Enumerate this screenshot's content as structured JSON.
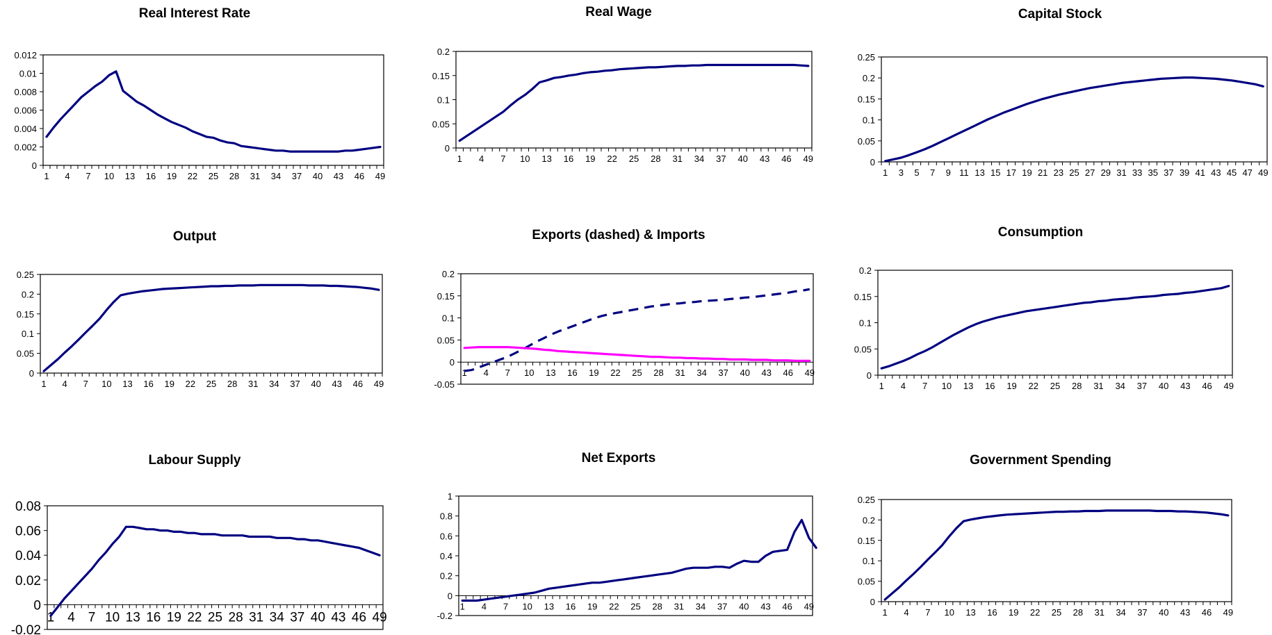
{
  "figure": {
    "background": "#ffffff",
    "line_color": "#000080",
    "imports_color": "#ff00ff"
  },
  "chart_data": [
    {
      "id": "real-interest-rate",
      "type": "line",
      "title": "Real Interest Rate",
      "ylim": [
        0,
        0.012
      ],
      "yticks": [
        "0",
        "0.002",
        "0.004",
        "0.006",
        "0.008",
        "0.01",
        "0.012"
      ],
      "x_tick_start": 1,
      "x_tick_step": 3,
      "x_tick_labels": [
        "1",
        "4",
        "7",
        "10",
        "13",
        "16",
        "19",
        "22",
        "25",
        "28",
        "31",
        "34",
        "37",
        "40",
        "43",
        "46",
        "49"
      ],
      "grid": false,
      "legend": "none",
      "series": [
        {
          "style": "solid",
          "color": "#000080",
          "values": [
            0.0031,
            0.0041,
            0.005,
            0.0058,
            0.0066,
            0.0074,
            0.008,
            0.0086,
            0.0091,
            0.0098,
            0.0102,
            0.0081,
            0.0075,
            0.0069,
            0.0065,
            0.006,
            0.0055,
            0.0051,
            0.0047,
            0.0044,
            0.0041,
            0.0037,
            0.0034,
            0.0031,
            0.003,
            0.0027,
            0.0025,
            0.0024,
            0.0021,
            0.002,
            0.0019,
            0.0018,
            0.0017,
            0.0016,
            0.0016,
            0.0015,
            0.0015,
            0.0015,
            0.0015,
            0.0015,
            0.0015,
            0.0015,
            0.0015,
            0.0016,
            0.0016,
            0.0017,
            0.0018,
            0.0019,
            0.002
          ]
        }
      ]
    },
    {
      "id": "real-wage",
      "type": "line",
      "title": "Real Wage",
      "ylim": [
        0,
        0.2
      ],
      "yticks": [
        "0",
        "0.05",
        "0.1",
        "0.15",
        "0.2"
      ],
      "x_tick_start": 1,
      "x_tick_step": 3,
      "x_tick_labels": [
        "1",
        "4",
        "7",
        "10",
        "13",
        "16",
        "19",
        "22",
        "25",
        "28",
        "31",
        "34",
        "37",
        "40",
        "43",
        "46",
        "49"
      ],
      "grid": false,
      "legend": "none",
      "series": [
        {
          "style": "solid",
          "color": "#000080",
          "values": [
            0.015,
            0.025,
            0.035,
            0.045,
            0.055,
            0.065,
            0.075,
            0.088,
            0.1,
            0.11,
            0.122,
            0.136,
            0.14,
            0.145,
            0.147,
            0.15,
            0.152,
            0.155,
            0.157,
            0.158,
            0.16,
            0.161,
            0.163,
            0.164,
            0.165,
            0.166,
            0.167,
            0.167,
            0.168,
            0.169,
            0.17,
            0.17,
            0.171,
            0.171,
            0.172,
            0.172,
            0.172,
            0.172,
            0.172,
            0.172,
            0.172,
            0.172,
            0.172,
            0.172,
            0.172,
            0.172,
            0.172,
            0.171,
            0.17
          ]
        }
      ]
    },
    {
      "id": "capital-stock",
      "type": "line",
      "title": "Capital Stock",
      "ylim": [
        0,
        0.25
      ],
      "yticks": [
        "0",
        "0.05",
        "0.1",
        "0.15",
        "0.2",
        "0.25"
      ],
      "x_tick_start": 1,
      "x_tick_step": 2,
      "x_tick_labels": [
        "1",
        "3",
        "5",
        "7",
        "9",
        "11",
        "13",
        "15",
        "17",
        "19",
        "21",
        "23",
        "25",
        "27",
        "29",
        "31",
        "33",
        "35",
        "37",
        "39",
        "41",
        "43",
        "45",
        "47",
        "49"
      ],
      "grid": false,
      "legend": "none",
      "series": [
        {
          "style": "solid",
          "color": "#000080",
          "values": [
            0.002,
            0.006,
            0.01,
            0.016,
            0.023,
            0.03,
            0.038,
            0.047,
            0.056,
            0.065,
            0.074,
            0.083,
            0.092,
            0.101,
            0.109,
            0.117,
            0.124,
            0.131,
            0.138,
            0.144,
            0.15,
            0.155,
            0.16,
            0.164,
            0.168,
            0.172,
            0.176,
            0.179,
            0.182,
            0.185,
            0.188,
            0.19,
            0.192,
            0.194,
            0.196,
            0.198,
            0.199,
            0.2,
            0.201,
            0.201,
            0.2,
            0.199,
            0.198,
            0.196,
            0.194,
            0.191,
            0.188,
            0.185,
            0.18
          ]
        }
      ]
    },
    {
      "id": "output",
      "type": "line",
      "title": "Output",
      "ylim": [
        0,
        0.25
      ],
      "yticks": [
        "0",
        "0.05",
        "0.1",
        "0.15",
        "0.2",
        "0.25"
      ],
      "x_tick_start": 1,
      "x_tick_step": 3,
      "x_tick_labels": [
        "1",
        "4",
        "7",
        "10",
        "13",
        "16",
        "19",
        "22",
        "25",
        "28",
        "31",
        "34",
        "37",
        "40",
        "43",
        "46",
        "49"
      ],
      "grid": false,
      "legend": "none",
      "series": [
        {
          "style": "solid",
          "color": "#000080",
          "values": [
            0.005,
            0.02,
            0.035,
            0.052,
            0.068,
            0.085,
            0.103,
            0.12,
            0.138,
            0.16,
            0.18,
            0.197,
            0.201,
            0.204,
            0.207,
            0.209,
            0.211,
            0.213,
            0.214,
            0.215,
            0.216,
            0.217,
            0.218,
            0.219,
            0.22,
            0.22,
            0.221,
            0.221,
            0.222,
            0.222,
            0.222,
            0.223,
            0.223,
            0.223,
            0.223,
            0.223,
            0.223,
            0.223,
            0.222,
            0.222,
            0.222,
            0.221,
            0.221,
            0.22,
            0.219,
            0.218,
            0.216,
            0.214,
            0.211
          ]
        }
      ]
    },
    {
      "id": "exports-imports",
      "type": "line",
      "title": "Exports (dashed) & Imports",
      "ylim": [
        -0.05,
        0.2
      ],
      "yticks": [
        "-0.05",
        "0",
        "0.05",
        "0.1",
        "0.15",
        "0.2"
      ],
      "x_tick_start": 1,
      "x_tick_step": 3,
      "x_tick_labels": [
        "1",
        "4",
        "7",
        "10",
        "13",
        "16",
        "19",
        "22",
        "25",
        "28",
        "31",
        "34",
        "37",
        "40",
        "43",
        "46",
        "49"
      ],
      "grid": false,
      "legend": "none",
      "series": [
        {
          "style": "dashed",
          "color": "#000080",
          "values": [
            -0.02,
            -0.018,
            -0.012,
            -0.006,
            0.0,
            0.006,
            0.012,
            0.02,
            0.028,
            0.037,
            0.046,
            0.054,
            0.062,
            0.069,
            0.075,
            0.081,
            0.087,
            0.093,
            0.099,
            0.104,
            0.108,
            0.111,
            0.114,
            0.117,
            0.12,
            0.123,
            0.126,
            0.128,
            0.13,
            0.132,
            0.133,
            0.135,
            0.136,
            0.138,
            0.139,
            0.14,
            0.141,
            0.143,
            0.144,
            0.146,
            0.147,
            0.149,
            0.151,
            0.153,
            0.155,
            0.157,
            0.16,
            0.162,
            0.165
          ]
        },
        {
          "style": "solid",
          "color": "#ff00ff",
          "values": [
            0.032,
            0.033,
            0.034,
            0.034,
            0.034,
            0.034,
            0.034,
            0.033,
            0.032,
            0.031,
            0.03,
            0.028,
            0.027,
            0.025,
            0.024,
            0.023,
            0.022,
            0.021,
            0.02,
            0.019,
            0.018,
            0.017,
            0.016,
            0.015,
            0.014,
            0.013,
            0.012,
            0.012,
            0.011,
            0.01,
            0.01,
            0.009,
            0.009,
            0.008,
            0.008,
            0.007,
            0.007,
            0.006,
            0.006,
            0.006,
            0.005,
            0.005,
            0.005,
            0.004,
            0.004,
            0.004,
            0.003,
            0.003,
            0.003
          ]
        }
      ]
    },
    {
      "id": "consumption",
      "type": "line",
      "title": "Consumption",
      "ylim": [
        0,
        0.2
      ],
      "yticks": [
        "0",
        "0.05",
        "0.1",
        "0.15",
        "0.2"
      ],
      "x_tick_start": 1,
      "x_tick_step": 3,
      "x_tick_labels": [
        "1",
        "4",
        "7",
        "10",
        "13",
        "16",
        "19",
        "22",
        "25",
        "28",
        "31",
        "34",
        "37",
        "40",
        "43",
        "46",
        "49"
      ],
      "grid": false,
      "legend": "none",
      "series": [
        {
          "style": "solid",
          "color": "#000080",
          "values": [
            0.013,
            0.017,
            0.022,
            0.027,
            0.033,
            0.04,
            0.046,
            0.053,
            0.061,
            0.069,
            0.077,
            0.084,
            0.091,
            0.097,
            0.102,
            0.106,
            0.11,
            0.113,
            0.116,
            0.119,
            0.122,
            0.124,
            0.126,
            0.128,
            0.13,
            0.132,
            0.134,
            0.136,
            0.138,
            0.139,
            0.141,
            0.142,
            0.144,
            0.145,
            0.146,
            0.148,
            0.149,
            0.15,
            0.151,
            0.153,
            0.154,
            0.155,
            0.157,
            0.158,
            0.16,
            0.162,
            0.164,
            0.166,
            0.17
          ]
        }
      ]
    },
    {
      "id": "labour-supply",
      "type": "line",
      "title": "Labour Supply",
      "ylim": [
        -0.02,
        0.08
      ],
      "yticks": [
        "-0.02",
        "0",
        "0.02",
        "0.04",
        "0.06",
        "0.08"
      ],
      "x_tick_start": 1,
      "x_tick_step": 3,
      "x_tick_labels": [
        "1",
        "4",
        "7",
        "10",
        "13",
        "16",
        "19",
        "22",
        "25",
        "28",
        "31",
        "34",
        "37",
        "40",
        "43",
        "46",
        "49"
      ],
      "grid": false,
      "legend": "none",
      "series": [
        {
          "style": "solid",
          "color": "#000080",
          "values": [
            -0.009,
            -0.002,
            0.005,
            0.011,
            0.017,
            0.023,
            0.029,
            0.036,
            0.042,
            0.049,
            0.055,
            0.063,
            0.063,
            0.062,
            0.061,
            0.061,
            0.06,
            0.06,
            0.059,
            0.059,
            0.058,
            0.058,
            0.057,
            0.057,
            0.057,
            0.056,
            0.056,
            0.056,
            0.056,
            0.055,
            0.055,
            0.055,
            0.055,
            0.054,
            0.054,
            0.054,
            0.053,
            0.053,
            0.052,
            0.052,
            0.051,
            0.05,
            0.049,
            0.048,
            0.047,
            0.046,
            0.044,
            0.042,
            0.04
          ]
        }
      ]
    },
    {
      "id": "net-exports",
      "type": "line",
      "title": "Net Exports",
      "ylim": [
        -0.2,
        1
      ],
      "yticks": [
        "-0.2",
        "0",
        "0.2",
        "0.4",
        "0.6",
        "0.8",
        "1"
      ],
      "x_tick_start": 1,
      "x_tick_step": 3,
      "x_tick_labels": [
        "1",
        "4",
        "7",
        "10",
        "13",
        "16",
        "19",
        "22",
        "25",
        "28",
        "31",
        "34",
        "37",
        "40",
        "43",
        "46",
        "49"
      ],
      "grid": false,
      "legend": "none",
      "series": [
        {
          "style": "solid",
          "color": "#000080",
          "values": [
            -0.05,
            -0.05,
            -0.05,
            -0.04,
            -0.03,
            -0.02,
            -0.01,
            0.0,
            0.01,
            0.02,
            0.03,
            0.05,
            0.07,
            0.08,
            0.09,
            0.1,
            0.11,
            0.12,
            0.13,
            0.13,
            0.14,
            0.15,
            0.16,
            0.17,
            0.18,
            0.19,
            0.2,
            0.21,
            0.22,
            0.23,
            0.25,
            0.27,
            0.28,
            0.28,
            0.28,
            0.29,
            0.29,
            0.28,
            0.32,
            0.35,
            0.34,
            0.34,
            0.4,
            0.44,
            0.45,
            0.46,
            0.64,
            0.76,
            0.58,
            0.48
          ]
        }
      ]
    },
    {
      "id": "government-spending",
      "type": "line",
      "title": "Government Spending",
      "ylim": [
        0,
        0.25
      ],
      "yticks": [
        "0",
        "0.05",
        "0.1",
        "0.15",
        "0.2",
        "0.25"
      ],
      "x_tick_start": 1,
      "x_tick_step": 3,
      "x_tick_labels": [
        "1",
        "4",
        "7",
        "10",
        "13",
        "16",
        "19",
        "22",
        "25",
        "28",
        "31",
        "34",
        "37",
        "40",
        "43",
        "46",
        "49"
      ],
      "grid": false,
      "legend": "none",
      "series": [
        {
          "style": "solid",
          "color": "#000080",
          "values": [
            0.005,
            0.02,
            0.035,
            0.052,
            0.068,
            0.085,
            0.103,
            0.12,
            0.138,
            0.16,
            0.18,
            0.197,
            0.201,
            0.204,
            0.207,
            0.209,
            0.211,
            0.213,
            0.214,
            0.215,
            0.216,
            0.217,
            0.218,
            0.219,
            0.22,
            0.22,
            0.221,
            0.221,
            0.222,
            0.222,
            0.222,
            0.223,
            0.223,
            0.223,
            0.223,
            0.223,
            0.223,
            0.223,
            0.222,
            0.222,
            0.222,
            0.221,
            0.221,
            0.22,
            0.219,
            0.218,
            0.216,
            0.214,
            0.211
          ]
        }
      ]
    }
  ]
}
